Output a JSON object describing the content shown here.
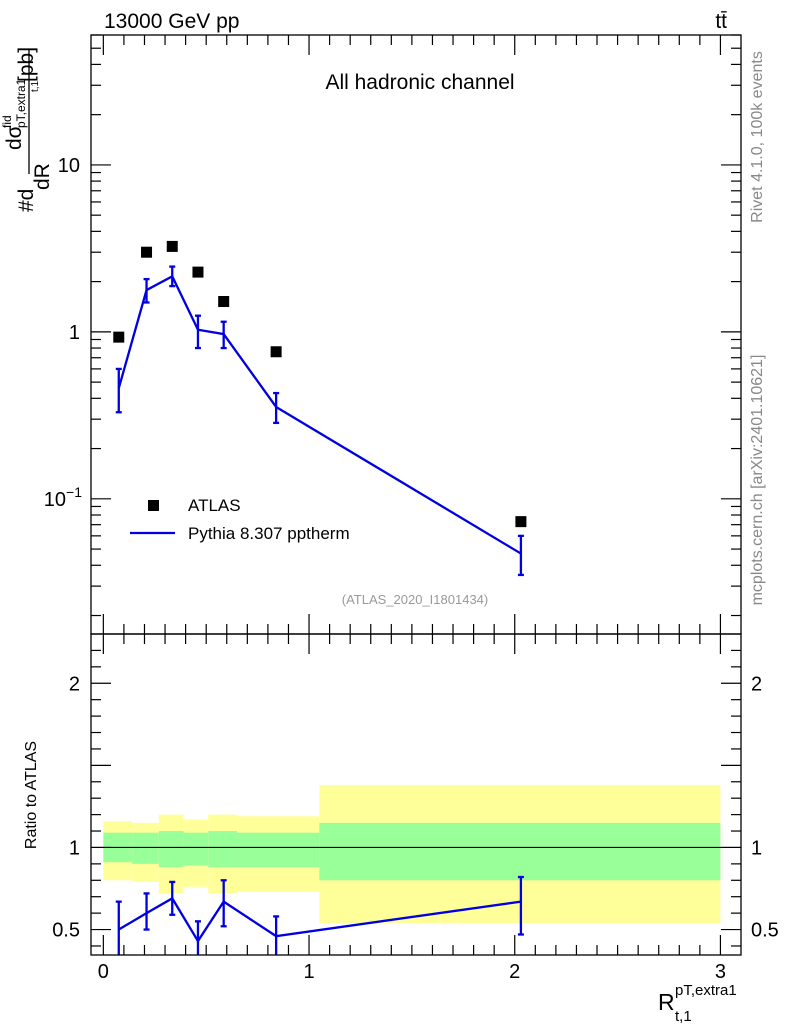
{
  "header": {
    "energy_label": "13000 GeV pp",
    "process_label": "tt̄",
    "channel_label": "All hadronic channel",
    "side_label_top": "Rivet 4.1.0,  100k events",
    "side_label_bottom": "mcplots.cern.ch [arXiv:2401.10621]",
    "analysis_id": "(ATLAS_2020_I1801434)"
  },
  "axis_labels": {
    "y_main_prefix": "#d",
    "y_main_num": "dσ",
    "y_main_num_sup": "fid",
    "y_main_num_sub": "pT,extra1",
    "y_main_num_sub2": "t,1",
    "y_main_den": "dR",
    "y_main_unit": "[pb]",
    "y_ratio": "Ratio to ATLAS",
    "x_main": "R",
    "x_sup": "pT,extra1",
    "x_sub": "t,1"
  },
  "chart_data": [
    {
      "type": "scatter",
      "panel": "main",
      "yscale": "log",
      "xlim": [
        -0.06,
        3.1
      ],
      "ylim": [
        0.0155,
        60
      ],
      "yticks": [
        {
          "value": 0.1,
          "label": "10",
          "exponent": "−1"
        },
        {
          "value": 1,
          "label": "1"
        },
        {
          "value": 10,
          "label": "10"
        }
      ],
      "legend": [
        "ATLAS",
        "Pythia 8.307 pptherm"
      ],
      "legend_position": "bottom-left",
      "series": [
        {
          "name": "ATLAS",
          "style": "markers",
          "color": "#000000",
          "x": [
            0.075,
            0.21,
            0.335,
            0.46,
            0.585,
            0.84,
            2.03
          ],
          "y": [
            0.93,
            3.0,
            3.25,
            2.28,
            1.52,
            0.76,
            0.073
          ]
        },
        {
          "name": "Pythia 8.307 pptherm",
          "style": "line",
          "color": "#0000e0",
          "x": [
            0.075,
            0.21,
            0.335,
            0.46,
            0.585,
            0.84,
            2.03
          ],
          "y": [
            0.46,
            1.78,
            2.15,
            1.03,
            0.97,
            0.355,
            0.047
          ],
          "err_lo": [
            0.33,
            1.5,
            1.88,
            0.8,
            0.8,
            0.285,
            0.035
          ],
          "err_hi": [
            0.6,
            2.07,
            2.46,
            1.25,
            1.15,
            0.43,
            0.06
          ]
        }
      ]
    },
    {
      "type": "line",
      "panel": "ratio",
      "xlim": [
        -0.06,
        3.1
      ],
      "ylim": [
        0.345,
        2.3
      ],
      "yticks": [
        0.5,
        1,
        2
      ],
      "xticks": [
        0,
        1,
        2,
        3
      ],
      "reference_line": 1,
      "band_bins": [
        {
          "x0": 0.0,
          "x1": 0.14,
          "stat_lo": 0.91,
          "stat_hi": 1.09,
          "tot_lo": 0.8,
          "tot_hi": 1.16
        },
        {
          "x0": 0.14,
          "x1": 0.27,
          "stat_lo": 0.9,
          "stat_hi": 1.09,
          "tot_lo": 0.79,
          "tot_hi": 1.15
        },
        {
          "x0": 0.27,
          "x1": 0.39,
          "stat_lo": 0.88,
          "stat_hi": 1.1,
          "tot_lo": 0.72,
          "tot_hi": 1.2
        },
        {
          "x0": 0.39,
          "x1": 0.51,
          "stat_lo": 0.89,
          "stat_hi": 1.09,
          "tot_lo": 0.76,
          "tot_hi": 1.17
        },
        {
          "x0": 0.51,
          "x1": 0.65,
          "stat_lo": 0.88,
          "stat_hi": 1.1,
          "tot_lo": 0.72,
          "tot_hi": 1.2
        },
        {
          "x0": 0.65,
          "x1": 1.05,
          "stat_lo": 0.88,
          "stat_hi": 1.09,
          "tot_lo": 0.73,
          "tot_hi": 1.19
        },
        {
          "x0": 1.05,
          "x1": 3.0,
          "stat_lo": 0.8,
          "stat_hi": 1.15,
          "tot_lo": 0.54,
          "tot_hi": 1.38
        }
      ],
      "band_colors": {
        "stat": "#99ff99",
        "total": "#ffff99"
      },
      "series": [
        {
          "name": "Pythia 8.307 pptherm / ATLAS",
          "color": "#0000e0",
          "x": [
            0.075,
            0.21,
            0.335,
            0.46,
            0.585,
            0.84,
            2.03
          ],
          "y": [
            0.5,
            0.6,
            0.69,
            0.43,
            0.67,
            0.46,
            0.67
          ],
          "err_lo": [
            0.33,
            0.5,
            0.59,
            0.33,
            0.52,
            0.33,
            0.47
          ],
          "err_hi": [
            0.67,
            0.72,
            0.79,
            0.55,
            0.8,
            0.58,
            0.82
          ]
        }
      ]
    }
  ]
}
